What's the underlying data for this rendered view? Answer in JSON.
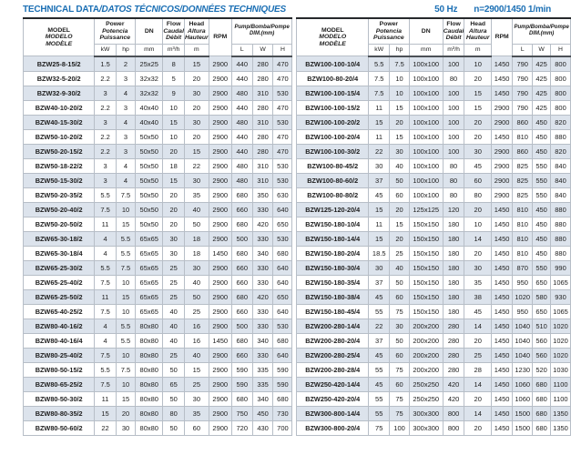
{
  "page": {
    "title_main": "TECHNICAL DATA",
    "title_rest": "/DATOS TÉCNICOS/DONNÉES TECHNIQUES",
    "frequency": "50 Hz",
    "speed": "n=2900/1450 1/min"
  },
  "colors": {
    "accent_blue": "#1b6fb4",
    "row_shade": "#dce3ec",
    "grid_line": "#b7bec7",
    "dark_line": "#26292c"
  },
  "columns": {
    "model": [
      "MODEL",
      "MODELO",
      "MODÈLE"
    ],
    "power": [
      "Power",
      "Potencia",
      "Puissance"
    ],
    "power_units": [
      "kW",
      "hp"
    ],
    "dn_label": "DN",
    "dn_unit": "mm",
    "flow": [
      "Flow",
      "Caudal",
      "Débit"
    ],
    "flow_unit": "m³/h",
    "head": [
      "Head",
      "Altura",
      "Hauteur"
    ],
    "head_unit": "m",
    "rpm_label": "RPM",
    "dim_label": "Pump/Bomba/Pompe",
    "dim_sublabel": "DIM.(mm)",
    "dim_units": [
      "L",
      "W",
      "H"
    ]
  },
  "tables": [
    {
      "rows": [
        [
          "BZW25-8-15/2",
          "1.5",
          "2",
          "25x25",
          "8",
          "15",
          "2900",
          "440",
          "280",
          "470"
        ],
        [
          "BZW32-5-20/2",
          "2.2",
          "3",
          "32x32",
          "5",
          "20",
          "2900",
          "440",
          "280",
          "470"
        ],
        [
          "BZW32-9-30/2",
          "3",
          "4",
          "32x32",
          "9",
          "30",
          "2900",
          "480",
          "310",
          "530"
        ],
        [
          "BZW40-10-20/2",
          "2.2",
          "3",
          "40x40",
          "10",
          "20",
          "2900",
          "440",
          "280",
          "470"
        ],
        [
          "BZW40-15-30/2",
          "3",
          "4",
          "40x40",
          "15",
          "30",
          "2900",
          "480",
          "310",
          "530"
        ],
        [
          "BZW50-10-20/2",
          "2.2",
          "3",
          "50x50",
          "10",
          "20",
          "2900",
          "440",
          "280",
          "470"
        ],
        [
          "BZW50-20-15/2",
          "2.2",
          "3",
          "50x50",
          "20",
          "15",
          "2900",
          "440",
          "280",
          "470"
        ],
        [
          "BZW50-18-22/2",
          "3",
          "4",
          "50x50",
          "18",
          "22",
          "2900",
          "480",
          "310",
          "530"
        ],
        [
          "BZW50-15-30/2",
          "3",
          "4",
          "50x50",
          "15",
          "30",
          "2900",
          "480",
          "310",
          "530"
        ],
        [
          "BZW50-20-35/2",
          "5.5",
          "7.5",
          "50x50",
          "20",
          "35",
          "2900",
          "680",
          "350",
          "630"
        ],
        [
          "BZW50-20-40/2",
          "7.5",
          "10",
          "50x50",
          "20",
          "40",
          "2900",
          "660",
          "330",
          "640"
        ],
        [
          "BZW50-20-50/2",
          "11",
          "15",
          "50x50",
          "20",
          "50",
          "2900",
          "680",
          "420",
          "650"
        ],
        [
          "BZW65-30-18/2",
          "4",
          "5.5",
          "65x65",
          "30",
          "18",
          "2900",
          "500",
          "330",
          "530"
        ],
        [
          "BZW65-30-18/4",
          "4",
          "5.5",
          "65x65",
          "30",
          "18",
          "1450",
          "680",
          "340",
          "680"
        ],
        [
          "BZW65-25-30/2",
          "5.5",
          "7.5",
          "65x65",
          "25",
          "30",
          "2900",
          "660",
          "330",
          "640"
        ],
        [
          "BZW65-25-40/2",
          "7.5",
          "10",
          "65x65",
          "25",
          "40",
          "2900",
          "660",
          "330",
          "640"
        ],
        [
          "BZW65-25-50/2",
          "11",
          "15",
          "65x65",
          "25",
          "50",
          "2900",
          "680",
          "420",
          "650"
        ],
        [
          "BZW65-40-25/2",
          "7.5",
          "10",
          "65x65",
          "40",
          "25",
          "2900",
          "660",
          "330",
          "640"
        ],
        [
          "BZW80-40-16/2",
          "4",
          "5.5",
          "80x80",
          "40",
          "16",
          "2900",
          "500",
          "330",
          "530"
        ],
        [
          "BZW80-40-16/4",
          "4",
          "5.5",
          "80x80",
          "40",
          "16",
          "1450",
          "680",
          "340",
          "680"
        ],
        [
          "BZW80-25-40/2",
          "7.5",
          "10",
          "80x80",
          "25",
          "40",
          "2900",
          "660",
          "330",
          "640"
        ],
        [
          "BZW80-50-15/2",
          "5.5",
          "7.5",
          "80x80",
          "50",
          "15",
          "2900",
          "590",
          "335",
          "590"
        ],
        [
          "BZW80-65-25/2",
          "7.5",
          "10",
          "80x80",
          "65",
          "25",
          "2900",
          "590",
          "335",
          "590"
        ],
        [
          "BZW80-50-30/2",
          "11",
          "15",
          "80x80",
          "50",
          "30",
          "2900",
          "680",
          "340",
          "680"
        ],
        [
          "BZW80-80-35/2",
          "15",
          "20",
          "80x80",
          "80",
          "35",
          "2900",
          "750",
          "450",
          "730"
        ],
        [
          "BZW80-50-60/2",
          "22",
          "30",
          "80x80",
          "50",
          "60",
          "2900",
          "720",
          "430",
          "700"
        ]
      ]
    },
    {
      "rows": [
        [
          "BZW100-100-10/4",
          "5.5",
          "7.5",
          "100x100",
          "100",
          "10",
          "1450",
          "790",
          "425",
          "800"
        ],
        [
          "BZW100-80-20/4",
          "7.5",
          "10",
          "100x100",
          "80",
          "20",
          "1450",
          "790",
          "425",
          "800"
        ],
        [
          "BZW100-100-15/4",
          "7.5",
          "10",
          "100x100",
          "100",
          "15",
          "1450",
          "790",
          "425",
          "800"
        ],
        [
          "BZW100-100-15/2",
          "11",
          "15",
          "100x100",
          "100",
          "15",
          "2900",
          "790",
          "425",
          "800"
        ],
        [
          "BZW100-100-20/2",
          "15",
          "20",
          "100x100",
          "100",
          "20",
          "2900",
          "860",
          "450",
          "820"
        ],
        [
          "BZW100-100-20/4",
          "11",
          "15",
          "100x100",
          "100",
          "20",
          "1450",
          "810",
          "450",
          "880"
        ],
        [
          "BZW100-100-30/2",
          "22",
          "30",
          "100x100",
          "100",
          "30",
          "2900",
          "860",
          "450",
          "820"
        ],
        [
          "BZW100-80-45/2",
          "30",
          "40",
          "100x100",
          "80",
          "45",
          "2900",
          "825",
          "550",
          "840"
        ],
        [
          "BZW100-80-60/2",
          "37",
          "50",
          "100x100",
          "80",
          "60",
          "2900",
          "825",
          "550",
          "840"
        ],
        [
          "BZW100-80-80/2",
          "45",
          "60",
          "100x100",
          "80",
          "80",
          "2900",
          "825",
          "550",
          "840"
        ],
        [
          "BZW125-120-20/4",
          "15",
          "20",
          "125x125",
          "120",
          "20",
          "1450",
          "810",
          "450",
          "880"
        ],
        [
          "BZW150-180-10/4",
          "11",
          "15",
          "150x150",
          "180",
          "10",
          "1450",
          "810",
          "450",
          "880"
        ],
        [
          "BZW150-180-14/4",
          "15",
          "20",
          "150x150",
          "180",
          "14",
          "1450",
          "810",
          "450",
          "880"
        ],
        [
          "BZW150-180-20/4",
          "18.5",
          "25",
          "150x150",
          "180",
          "20",
          "1450",
          "810",
          "450",
          "880"
        ],
        [
          "BZW150-180-30/4",
          "30",
          "40",
          "150x150",
          "180",
          "30",
          "1450",
          "870",
          "550",
          "990"
        ],
        [
          "BZW150-180-35/4",
          "37",
          "50",
          "150x150",
          "180",
          "35",
          "1450",
          "950",
          "650",
          "1065"
        ],
        [
          "BZW150-180-38/4",
          "45",
          "60",
          "150x150",
          "180",
          "38",
          "1450",
          "1020",
          "580",
          "930"
        ],
        [
          "BZW150-180-45/4",
          "55",
          "75",
          "150x150",
          "180",
          "45",
          "1450",
          "950",
          "650",
          "1065"
        ],
        [
          "BZW200-280-14/4",
          "22",
          "30",
          "200x200",
          "280",
          "14",
          "1450",
          "1040",
          "510",
          "1020"
        ],
        [
          "BZW200-280-20/4",
          "37",
          "50",
          "200x200",
          "280",
          "20",
          "1450",
          "1040",
          "560",
          "1020"
        ],
        [
          "BZW200-280-25/4",
          "45",
          "60",
          "200x200",
          "280",
          "25",
          "1450",
          "1040",
          "560",
          "1020"
        ],
        [
          "BZW200-280-28/4",
          "55",
          "75",
          "200x200",
          "280",
          "28",
          "1450",
          "1230",
          "520",
          "1030"
        ],
        [
          "BZW250-420-14/4",
          "45",
          "60",
          "250x250",
          "420",
          "14",
          "1450",
          "1060",
          "680",
          "1100"
        ],
        [
          "BZW250-420-20/4",
          "55",
          "75",
          "250x250",
          "420",
          "20",
          "1450",
          "1060",
          "680",
          "1100"
        ],
        [
          "BZW300-800-14/4",
          "55",
          "75",
          "300x300",
          "800",
          "14",
          "1450",
          "1500",
          "680",
          "1350"
        ],
        [
          "BZW300-800-20/4",
          "75",
          "100",
          "300x300",
          "800",
          "20",
          "1450",
          "1500",
          "680",
          "1350"
        ]
      ]
    }
  ]
}
